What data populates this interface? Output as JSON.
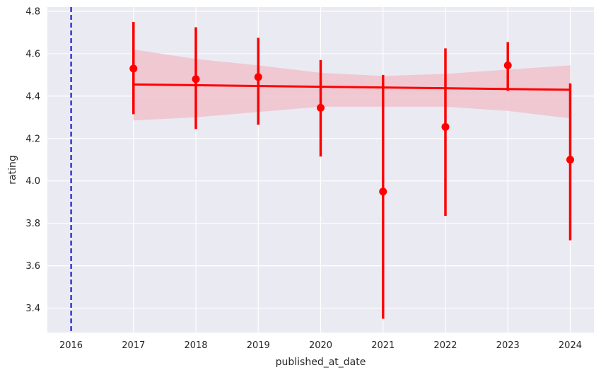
{
  "chart_data": {
    "type": "scatter",
    "xlabel": "published_at_date",
    "ylabel": "rating",
    "xlim": [
      2015.62,
      2024.38
    ],
    "ylim": [
      3.285,
      4.82
    ],
    "x_ticks": [
      "2016",
      "2017",
      "2018",
      "2019",
      "2020",
      "2021",
      "2022",
      "2023",
      "2024"
    ],
    "y_ticks": [
      "3.4",
      "3.6",
      "3.8",
      "4.0",
      "4.2",
      "4.4",
      "4.6",
      "4.8"
    ],
    "grid": true,
    "background": "#eaeaf2",
    "grid_color": "#ffffff",
    "series_color": "#ff0000",
    "band_color": "#f1c2cc",
    "points": [
      {
        "x": 2017,
        "y": 4.53,
        "ci": [
          4.315,
          4.75
        ]
      },
      {
        "x": 2018,
        "y": 4.48,
        "ci": [
          4.245,
          4.725
        ]
      },
      {
        "x": 2019,
        "y": 4.49,
        "ci": [
          4.265,
          4.675
        ]
      },
      {
        "x": 2020,
        "y": 4.345,
        "ci": [
          4.115,
          4.57
        ]
      },
      {
        "x": 2021,
        "y": 3.95,
        "ci": [
          3.35,
          4.5
        ]
      },
      {
        "x": 2022,
        "y": 4.255,
        "ci": [
          3.835,
          4.625
        ]
      },
      {
        "x": 2023,
        "y": 4.545,
        "ci": [
          4.425,
          4.655
        ]
      },
      {
        "x": 2024,
        "y": 4.1,
        "ci": [
          3.72,
          4.46
        ]
      }
    ],
    "regression": {
      "x": [
        2017,
        2024
      ],
      "y": [
        4.455,
        4.43
      ]
    },
    "regression_band": {
      "x": [
        2017,
        2018,
        2019,
        2020,
        2021,
        2022,
        2023,
        2024
      ],
      "upper": [
        4.62,
        4.575,
        4.545,
        4.51,
        4.495,
        4.505,
        4.525,
        4.545
      ],
      "lower": [
        4.285,
        4.3,
        4.325,
        4.35,
        4.35,
        4.35,
        4.33,
        4.295
      ]
    },
    "vline": {
      "x": 2016,
      "color": "#0000cc",
      "style": "dashed"
    }
  }
}
